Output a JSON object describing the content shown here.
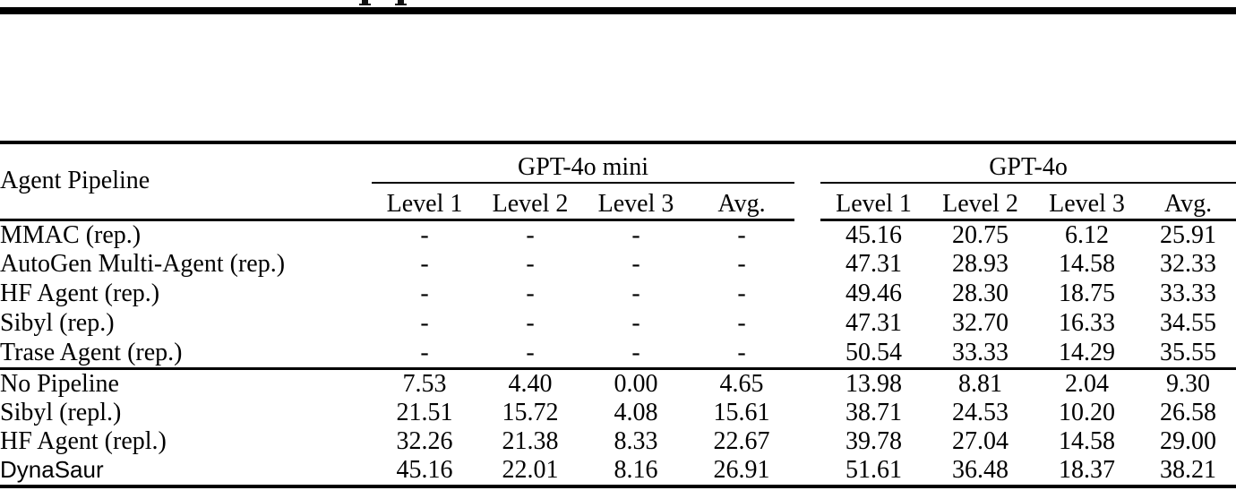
{
  "colors": {
    "background": "#ffffff",
    "text": "#000000",
    "rule": "#000000"
  },
  "table": {
    "corner_header": "Agent Pipeline",
    "col_groups": [
      {
        "label": "GPT-4o mini",
        "sub_columns": [
          "Level 1",
          "Level 2",
          "Level 3",
          "Avg."
        ]
      },
      {
        "label": "GPT-4o",
        "sub_columns": [
          "Level 1",
          "Level 2",
          "Level 3",
          "Avg."
        ]
      }
    ],
    "sections": [
      {
        "name": "reported-baselines",
        "rows": [
          {
            "pipeline": "MMAC (rep.)",
            "values": [
              "-",
              "-",
              "-",
              "-",
              "45.16",
              "20.75",
              "6.12",
              "25.91"
            ],
            "bold": []
          },
          {
            "pipeline": "AutoGen Multi-Agent (rep.)",
            "values": [
              "-",
              "-",
              "-",
              "-",
              "47.31",
              "28.93",
              "14.58",
              "32.33"
            ],
            "bold": []
          },
          {
            "pipeline": "HF Agent (rep.)",
            "values": [
              "-",
              "-",
              "-",
              "-",
              "49.46",
              "28.30",
              "18.75",
              "33.33"
            ],
            "bold": []
          },
          {
            "pipeline": "Sibyl (rep.)",
            "values": [
              "-",
              "-",
              "-",
              "-",
              "47.31",
              "32.70",
              "16.33",
              "34.55"
            ],
            "bold": []
          },
          {
            "pipeline": "Trase Agent (rep.)",
            "values": [
              "-",
              "-",
              "-",
              "-",
              "50.54",
              "33.33",
              "14.29",
              "35.55"
            ],
            "bold": []
          }
        ]
      },
      {
        "name": "replicated-and-ours",
        "rows": [
          {
            "pipeline": "No Pipeline",
            "values": [
              "7.53",
              "4.40",
              "0.00",
              "4.65",
              "13.98",
              "8.81",
              "2.04",
              "9.30"
            ],
            "bold": []
          },
          {
            "pipeline": "Sibyl (repl.)",
            "values": [
              "21.51",
              "15.72",
              "4.08",
              "15.61",
              "38.71",
              "24.53",
              "10.20",
              "26.58"
            ],
            "bold": []
          },
          {
            "pipeline": "HF Agent (repl.)",
            "values": [
              "32.26",
              "21.38",
              "8.33",
              "22.67",
              "39.78",
              "27.04",
              "14.58",
              "29.00"
            ],
            "bold": [
              2
            ]
          },
          {
            "pipeline": "DynaSaur",
            "pipeline_font": "sans",
            "values": [
              "45.16",
              "22.01",
              "8.16",
              "26.91",
              "51.61",
              "36.48",
              "18.37",
              "38.21"
            ],
            "bold": [
              0,
              1,
              3,
              4,
              5,
              6,
              7
            ]
          }
        ]
      }
    ]
  }
}
